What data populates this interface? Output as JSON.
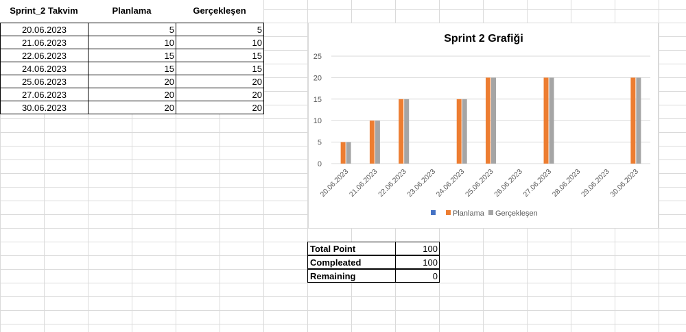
{
  "sheet": {
    "headers": [
      "Sprint_2 Takvim",
      "Planlama",
      "Gerçekleşen"
    ],
    "rows": [
      {
        "date": "20.06.2023",
        "plan": "5",
        "actual": "5"
      },
      {
        "date": "21.06.2023",
        "plan": "10",
        "actual": "10"
      },
      {
        "date": "22.06.2023",
        "plan": "15",
        "actual": "15"
      },
      {
        "date": "24.06.2023",
        "plan": "15",
        "actual": "15"
      },
      {
        "date": "25.06.2023",
        "plan": "20",
        "actual": "20"
      },
      {
        "date": "27.06.2023",
        "plan": "20",
        "actual": "20"
      },
      {
        "date": "30.06.2023",
        "plan": "20",
        "actual": "20"
      }
    ]
  },
  "summary": [
    {
      "label": "Total Point",
      "value": "100"
    },
    {
      "label": "Compleated",
      "value": "100"
    },
    {
      "label": "Remaining",
      "value": "0"
    }
  ],
  "chart_data": {
    "type": "bar",
    "title": "Sprint 2 Grafiği",
    "categories": [
      "20.06.2023",
      "21.06.2023",
      "22.06.2023",
      "23.06.2023",
      "24.06.2023",
      "25.06.2023",
      "26.06.2023",
      "27.06.2023",
      "28.06.2023",
      "29.06.2023",
      "30.06.2023"
    ],
    "series": [
      {
        "name": "Planlama",
        "color": "#ED7D31",
        "values": [
          5,
          10,
          15,
          null,
          15,
          20,
          null,
          20,
          null,
          null,
          20
        ]
      },
      {
        "name": "Gerçekleşen",
        "color": "#A5A5A5",
        "values": [
          5,
          10,
          15,
          null,
          15,
          20,
          null,
          20,
          null,
          null,
          20
        ]
      }
    ],
    "legend_extra_marker_color": "#4472C4",
    "ylim": [
      0,
      25
    ],
    "yticks": [
      0,
      5,
      10,
      15,
      20,
      25
    ],
    "grid": true,
    "legend": "bottom"
  }
}
